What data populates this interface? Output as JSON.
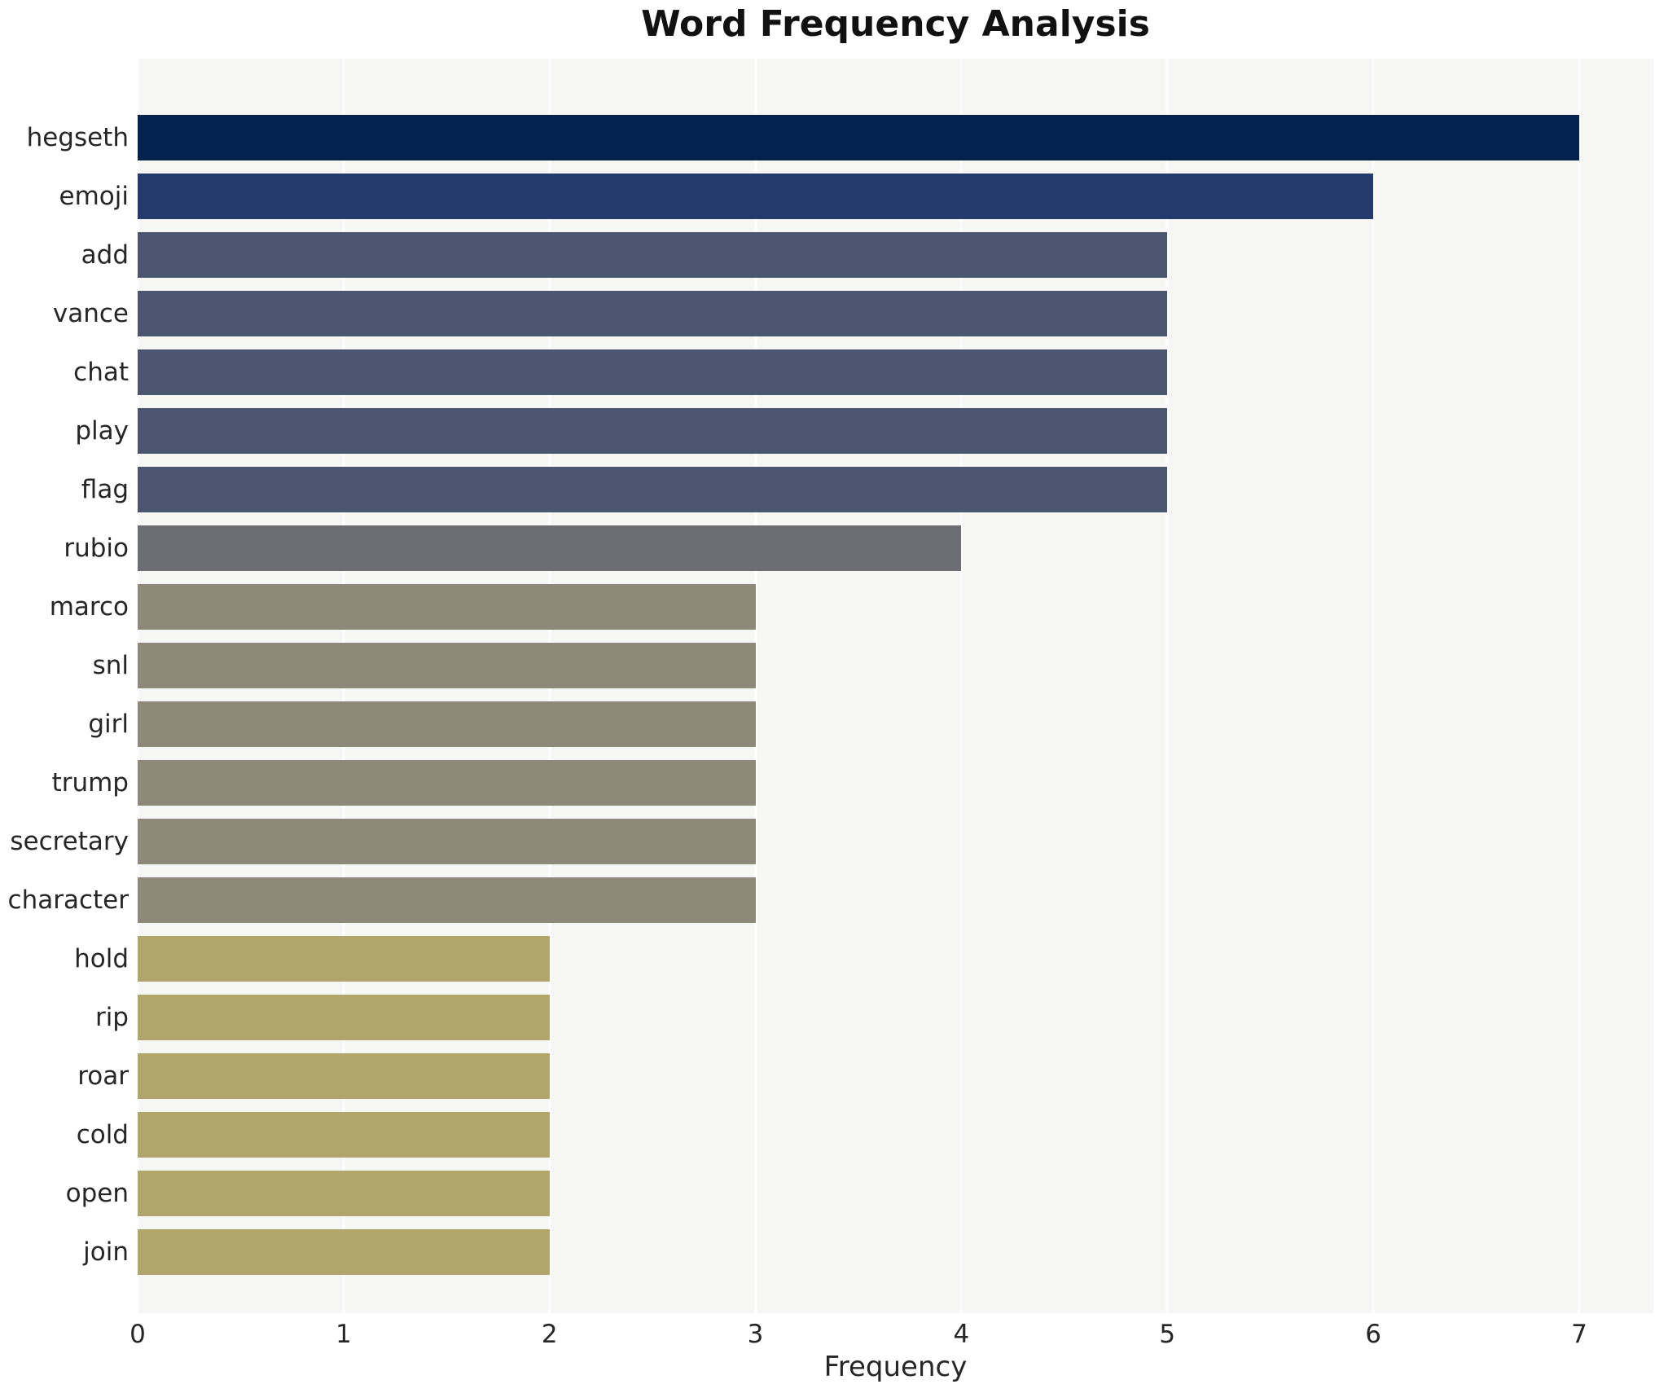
{
  "title": "Word Frequency Analysis",
  "xlabel": "Frequency",
  "chart_data": {
    "type": "bar",
    "orientation": "horizontal",
    "title": "Word Frequency Analysis",
    "xlabel": "Frequency",
    "ylabel": "",
    "categories": [
      "hegseth",
      "emoji",
      "add",
      "vance",
      "chat",
      "play",
      "flag",
      "rubio",
      "marco",
      "snl",
      "girl",
      "trump",
      "secretary",
      "character",
      "hold",
      "rip",
      "roar",
      "cold",
      "open",
      "join"
    ],
    "values": [
      7,
      6,
      5,
      5,
      5,
      5,
      5,
      4,
      3,
      3,
      3,
      3,
      3,
      3,
      2,
      2,
      2,
      2,
      2,
      2
    ],
    "xlim": [
      0,
      7.36
    ],
    "xticks": [
      0,
      1,
      2,
      3,
      4,
      5,
      6,
      7
    ],
    "grid": true,
    "legend": false,
    "plot_background": "#f6f6f4",
    "grid_color": "#fdfdfd",
    "text_color": "#262626",
    "value_colors": {
      "7": "#03224e",
      "6": "#243a6c",
      "5": "#4d566f",
      "4": "#6c6e74",
      "3": "#8e8a79",
      "2": "#b0a66b"
    }
  }
}
